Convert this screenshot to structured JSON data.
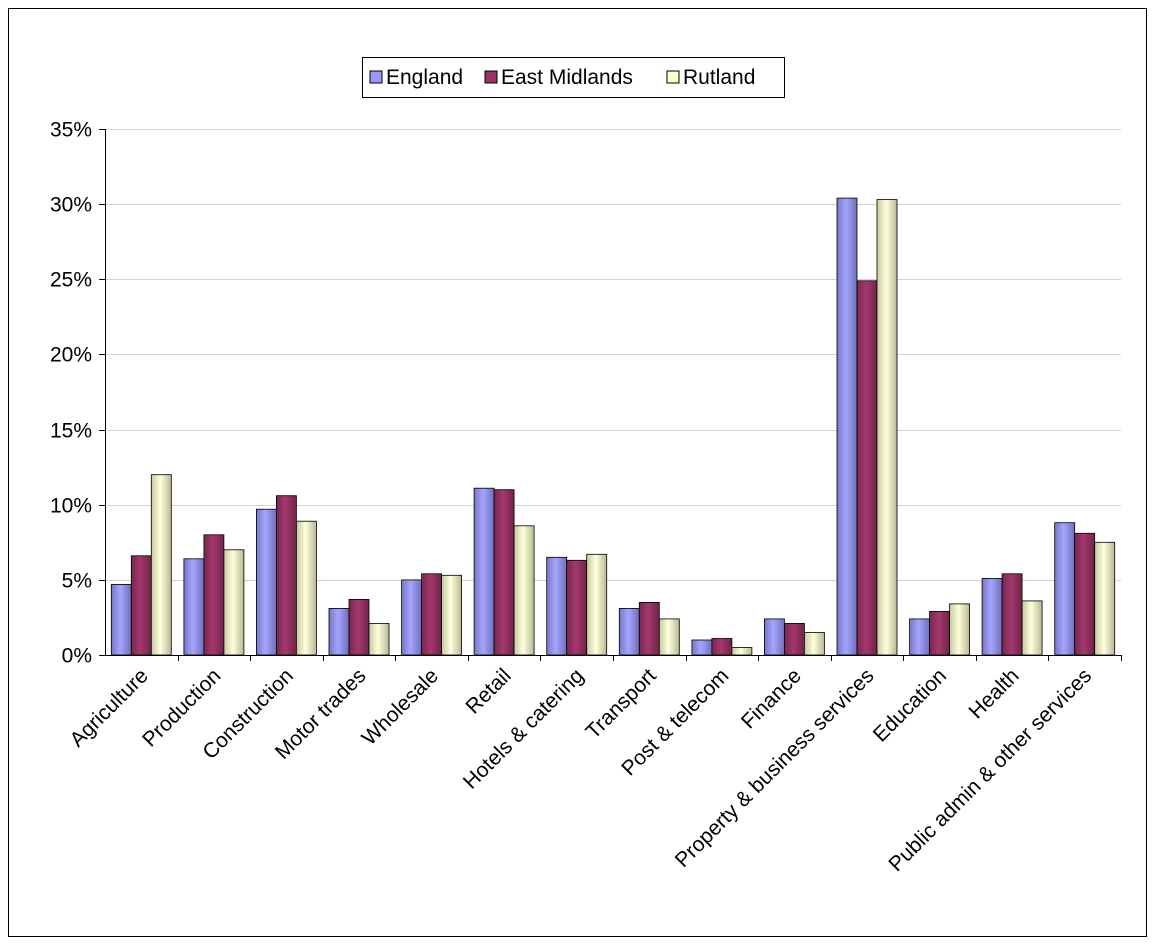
{
  "chart_data": {
    "type": "bar",
    "title": "",
    "xlabel": "",
    "ylabel": "",
    "ylim": [
      0,
      35
    ],
    "y_ticks": [
      0,
      5,
      10,
      15,
      20,
      25,
      30,
      35
    ],
    "y_tick_labels": [
      "0%",
      "5%",
      "10%",
      "15%",
      "20%",
      "25%",
      "30%",
      "35%"
    ],
    "grid": true,
    "legend_position": "top-center",
    "categories": [
      "Agriculture",
      "Production",
      "Construction",
      "Motor trades",
      "Wholesale",
      "Retail",
      "Hotels & catering",
      "Transport",
      "Post & telecom",
      "Finance",
      "Property & business services",
      "Education",
      "Health",
      "Public admin & other services"
    ],
    "series": [
      {
        "name": "England",
        "color": "#9999ff",
        "values": [
          4.7,
          6.4,
          9.7,
          3.1,
          5.0,
          11.1,
          6.5,
          3.1,
          1.0,
          2.4,
          30.4,
          2.4,
          5.1,
          8.8
        ]
      },
      {
        "name": "East Midlands",
        "color": "#993366",
        "values": [
          6.6,
          8.0,
          10.6,
          3.7,
          5.4,
          11.0,
          6.3,
          3.5,
          1.1,
          2.1,
          24.9,
          2.9,
          5.4,
          8.1
        ]
      },
      {
        "name": "Rutland",
        "color": "#ffffcc",
        "values": [
          12.0,
          7.0,
          8.9,
          2.1,
          5.3,
          8.6,
          6.7,
          2.4,
          0.5,
          1.5,
          30.3,
          3.4,
          3.6,
          7.5
        ]
      }
    ]
  }
}
